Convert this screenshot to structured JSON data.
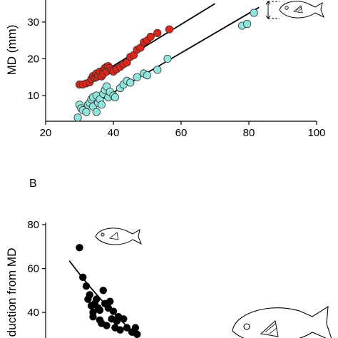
{
  "panels": {
    "b_label": "B"
  },
  "chart_data": [
    {
      "type": "scatter",
      "panel": "A",
      "ylabel": "MD (mm)",
      "xlabel": "",
      "xlim": [
        20,
        100
      ],
      "ylim": [
        3,
        36
      ],
      "xticks": [
        20,
        40,
        60,
        80,
        100
      ],
      "yticks": [
        10,
        20,
        30
      ],
      "colors": {
        "red": "#e02418",
        "cyan": "#8ee6dc",
        "outline": "#333333"
      },
      "series": [
        {
          "color": "#e02418",
          "points": [
            [
              30,
              13
            ],
            [
              31,
              13
            ],
            [
              32,
              13.3
            ],
            [
              33,
              13.6
            ],
            [
              33.5,
              14.5
            ],
            [
              34,
              15.3
            ],
            [
              34.5,
              14.8
            ],
            [
              35,
              15
            ],
            [
              35,
              16
            ],
            [
              35.5,
              15.5
            ],
            [
              36,
              16.5
            ],
            [
              36.5,
              15.2
            ],
            [
              37,
              16.8
            ],
            [
              37,
              15.8
            ],
            [
              37.5,
              17.5
            ],
            [
              38,
              17.8
            ],
            [
              38,
              16.5
            ],
            [
              38.5,
              18
            ],
            [
              39,
              17.5
            ],
            [
              39.5,
              16.8
            ],
            [
              40,
              16.5
            ],
            [
              41,
              17.2
            ],
            [
              42,
              17.8
            ],
            [
              43,
              18.5
            ],
            [
              44,
              19
            ],
            [
              45,
              20.5
            ],
            [
              46,
              21
            ],
            [
              47,
              22.5
            ],
            [
              48,
              23
            ],
            [
              49,
              24.5
            ],
            [
              50,
              25
            ],
            [
              51,
              26
            ],
            [
              53,
              27
            ],
            [
              56.5,
              28
            ]
          ],
          "fit": [
            [
              31,
              13
            ],
            [
              70,
              35
            ]
          ]
        },
        {
          "color": "#8ee6dc",
          "points": [
            [
              29.5,
              4
            ],
            [
              30,
              7.5
            ],
            [
              30.5,
              6.5
            ],
            [
              31,
              6
            ],
            [
              32,
              5.5
            ],
            [
              32.5,
              7.5
            ],
            [
              33,
              8
            ],
            [
              33.5,
              9
            ],
            [
              34,
              7
            ],
            [
              34,
              9.5
            ],
            [
              35,
              5.5
            ],
            [
              35,
              10
            ],
            [
              35.5,
              8
            ],
            [
              36,
              9
            ],
            [
              36.5,
              7.5
            ],
            [
              37,
              10.5
            ],
            [
              37.5,
              11.5
            ],
            [
              38,
              12.5
            ],
            [
              38.5,
              9.5
            ],
            [
              39,
              11
            ],
            [
              40,
              10
            ],
            [
              40.5,
              9.5
            ],
            [
              42,
              12
            ],
            [
              43,
              13
            ],
            [
              44,
              14
            ],
            [
              45,
              13.5
            ],
            [
              47,
              15
            ],
            [
              49,
              16
            ],
            [
              50,
              15.5
            ],
            [
              53,
              17
            ],
            [
              56,
              20
            ],
            [
              78,
              29
            ],
            [
              79.5,
              29.5
            ],
            [
              81.5,
              32.5
            ]
          ],
          "fit": [
            [
              32,
              6.5
            ],
            [
              83,
              34
            ]
          ]
        }
      ]
    },
    {
      "type": "scatter",
      "panel": "B",
      "ylabel": "duction from MD",
      "xlabel": "",
      "ylim": [
        28,
        80
      ],
      "yticks": [
        40,
        60,
        80
      ],
      "x_range_note": "shares x scale with panel A",
      "xlim": [
        20,
        100
      ],
      "colors": {
        "points": "#000000"
      },
      "series": [
        {
          "color": "#000000",
          "points": [
            [
              30,
              69.5
            ],
            [
              31,
              56
            ],
            [
              32,
              52
            ],
            [
              32.5,
              46
            ],
            [
              33,
              48
            ],
            [
              33.5,
              43
            ],
            [
              34,
              40
            ],
            [
              34,
              38
            ],
            [
              34.5,
              44
            ],
            [
              35,
              46
            ],
            [
              35.5,
              42
            ],
            [
              36,
              41
            ],
            [
              36,
              36.5
            ],
            [
              36.5,
              35
            ],
            [
              37,
              50
            ],
            [
              37.5,
              44
            ],
            [
              38,
              34
            ],
            [
              38.5,
              42
            ],
            [
              39,
              45
            ],
            [
              39.5,
              37
            ],
            [
              40,
              40.5
            ],
            [
              40.5,
              33
            ],
            [
              41,
              36
            ],
            [
              41.5,
              38
            ],
            [
              42,
              32
            ],
            [
              43,
              37
            ],
            [
              44,
              33
            ],
            [
              45.5,
              31
            ],
            [
              46.5,
              33
            ],
            [
              47,
              30
            ]
          ],
          "fit": [
            [
              27,
              63.5
            ],
            [
              37,
              43
            ],
            [
              47,
              29.5
            ]
          ]
        }
      ]
    }
  ]
}
